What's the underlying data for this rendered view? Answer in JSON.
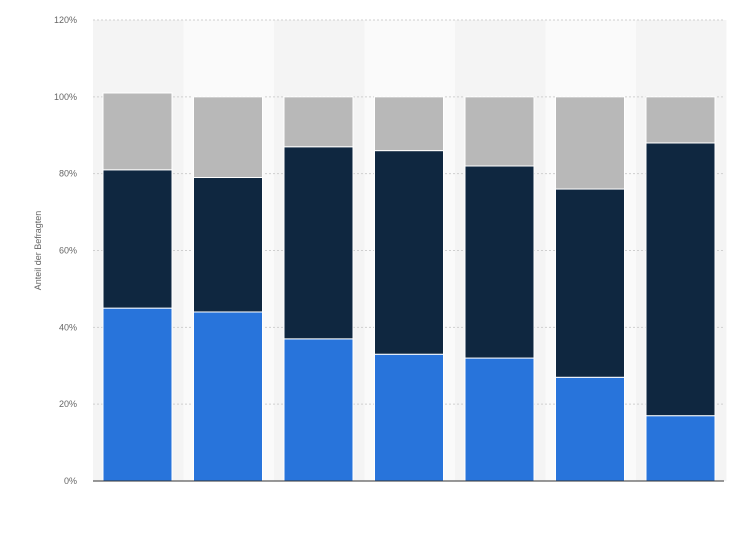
{
  "chart_data": {
    "type": "bar",
    "stacked": true,
    "title": "",
    "xlabel": "",
    "ylabel": "Anteil der Befragten",
    "ylim": [
      0,
      120
    ],
    "yticks": [
      "0%",
      "20%",
      "40%",
      "60%",
      "80%",
      "100%",
      "120%"
    ],
    "grid": true,
    "categories": [
      "",
      "",
      "",
      "",
      "",
      "",
      ""
    ],
    "series": [
      {
        "color": "#2874db",
        "values": [
          45,
          44,
          37,
          33,
          32,
          27,
          17
        ]
      },
      {
        "color": "#0f2740",
        "values": [
          36,
          35,
          50,
          53,
          50,
          49,
          71
        ]
      },
      {
        "color": "#b8b8b8",
        "values": [
          20,
          21,
          13,
          14,
          18,
          24,
          12
        ]
      }
    ]
  }
}
